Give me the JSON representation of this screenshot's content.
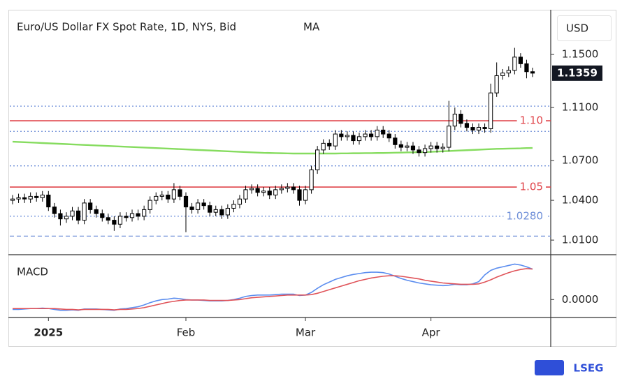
{
  "chart_data": [
    {
      "type": "candlestick",
      "title": "Euro/US Dollar FX Spot Rate, 1D, NYS, Bid",
      "currency": "USD",
      "up_color": "#ffffff",
      "down_color": "#000000",
      "outline_color": "#000000",
      "categories": [
        null,
        null,
        null,
        null,
        null,
        null,
        "2025",
        null,
        null,
        null,
        null,
        null,
        null,
        null,
        null,
        null,
        null,
        null,
        null,
        null,
        null,
        null,
        null,
        null,
        null,
        null,
        null,
        null,
        null,
        "Feb",
        null,
        null,
        null,
        null,
        null,
        null,
        null,
        null,
        null,
        null,
        null,
        null,
        null,
        null,
        null,
        null,
        null,
        null,
        null,
        "Mar",
        null,
        null,
        null,
        null,
        null,
        null,
        null,
        null,
        null,
        null,
        null,
        null,
        null,
        null,
        null,
        null,
        null,
        null,
        null,
        null,
        "Apr",
        null,
        null,
        null,
        null,
        null,
        null,
        null,
        null,
        null,
        null,
        null,
        null,
        null,
        null,
        null,
        null,
        null
      ],
      "open": [
        1.04,
        1.041,
        1.042,
        1.041,
        1.043,
        1.042,
        1.044,
        1.035,
        1.03,
        1.026,
        1.028,
        1.032,
        1.025,
        1.038,
        1.033,
        1.03,
        1.027,
        1.025,
        1.022,
        1.028,
        1.027,
        1.03,
        1.028,
        1.033,
        1.04,
        1.043,
        1.044,
        1.041,
        1.048,
        1.043,
        1.035,
        1.033,
        1.038,
        1.036,
        1.031,
        1.033,
        1.029,
        1.034,
        1.037,
        1.041,
        1.048,
        1.049,
        1.046,
        1.047,
        1.044,
        1.048,
        1.049,
        1.05,
        1.048,
        1.04,
        1.048,
        1.063,
        1.078,
        1.083,
        1.081,
        1.09,
        1.088,
        1.089,
        1.085,
        1.088,
        1.09,
        1.088,
        1.093,
        1.09,
        1.087,
        1.082,
        1.08,
        1.081,
        1.078,
        1.076,
        1.079,
        1.081,
        1.079,
        1.08,
        1.096,
        1.105,
        1.098,
        1.095,
        1.093,
        1.095,
        1.094,
        1.121,
        1.134,
        1.136,
        1.138,
        1.148,
        1.143,
        1.137
      ],
      "high": [
        1.044,
        1.045,
        1.045,
        1.046,
        1.046,
        1.047,
        1.047,
        1.038,
        1.033,
        1.031,
        1.035,
        1.035,
        1.041,
        1.041,
        1.036,
        1.033,
        1.03,
        1.028,
        1.031,
        1.031,
        1.033,
        1.033,
        1.036,
        1.043,
        1.046,
        1.047,
        1.047,
        1.053,
        1.051,
        1.046,
        1.038,
        1.041,
        1.041,
        1.039,
        1.036,
        1.036,
        1.037,
        1.04,
        1.044,
        1.051,
        1.052,
        1.052,
        1.05,
        1.05,
        1.051,
        1.052,
        1.053,
        1.053,
        1.051,
        1.051,
        1.066,
        1.081,
        1.086,
        1.086,
        1.093,
        1.093,
        1.092,
        1.092,
        1.091,
        1.093,
        1.093,
        1.096,
        1.096,
        1.093,
        1.09,
        1.085,
        1.084,
        1.084,
        1.081,
        1.082,
        1.084,
        1.084,
        1.083,
        1.115,
        1.11,
        1.108,
        1.101,
        1.098,
        1.098,
        1.098,
        1.128,
        1.144,
        1.139,
        1.141,
        1.155,
        1.151,
        1.146,
        1.14
      ],
      "low": [
        1.037,
        1.038,
        1.038,
        1.038,
        1.039,
        1.039,
        1.032,
        1.027,
        1.021,
        1.023,
        1.025,
        1.022,
        1.022,
        1.03,
        1.027,
        1.024,
        1.022,
        1.017,
        1.019,
        1.024,
        1.024,
        1.025,
        1.025,
        1.03,
        1.037,
        1.04,
        1.038,
        1.038,
        1.04,
        1.016,
        1.03,
        1.03,
        1.033,
        1.028,
        1.028,
        1.026,
        1.026,
        1.031,
        1.034,
        1.038,
        1.045,
        1.043,
        1.043,
        1.041,
        1.041,
        1.045,
        1.046,
        1.045,
        1.036,
        1.037,
        1.045,
        1.06,
        1.075,
        1.078,
        1.078,
        1.085,
        1.085,
        1.082,
        1.082,
        1.085,
        1.085,
        1.085,
        1.087,
        1.084,
        1.079,
        1.077,
        1.077,
        1.075,
        1.073,
        1.073,
        1.076,
        1.076,
        1.076,
        1.077,
        1.093,
        1.095,
        1.092,
        1.09,
        1.09,
        1.091,
        1.091,
        1.118,
        1.131,
        1.133,
        1.135,
        1.14,
        1.132,
        1.133
      ],
      "close": [
        1.041,
        1.042,
        1.041,
        1.043,
        1.042,
        1.044,
        1.035,
        1.03,
        1.026,
        1.028,
        1.032,
        1.025,
        1.038,
        1.033,
        1.03,
        1.027,
        1.025,
        1.022,
        1.028,
        1.027,
        1.03,
        1.028,
        1.033,
        1.04,
        1.043,
        1.044,
        1.041,
        1.048,
        1.043,
        1.035,
        1.033,
        1.038,
        1.036,
        1.031,
        1.033,
        1.029,
        1.034,
        1.037,
        1.041,
        1.048,
        1.049,
        1.046,
        1.047,
        1.044,
        1.048,
        1.049,
        1.05,
        1.048,
        1.04,
        1.048,
        1.063,
        1.078,
        1.083,
        1.081,
        1.09,
        1.088,
        1.089,
        1.085,
        1.088,
        1.09,
        1.088,
        1.093,
        1.09,
        1.087,
        1.082,
        1.08,
        1.081,
        1.078,
        1.076,
        1.079,
        1.081,
        1.079,
        1.08,
        1.096,
        1.105,
        1.098,
        1.095,
        1.093,
        1.095,
        1.094,
        1.121,
        1.134,
        1.136,
        1.138,
        1.148,
        1.143,
        1.137,
        1.1359
      ],
      "series": [
        {
          "name": "MA",
          "color": "#86dc5f",
          "values": [
            1.0842,
            1.084,
            1.0838,
            1.0836,
            1.0834,
            1.0832,
            1.083,
            1.0828,
            1.0826,
            1.0824,
            1.0822,
            1.082,
            1.0818,
            1.0816,
            1.0814,
            1.0812,
            1.081,
            1.0808,
            1.0806,
            1.0804,
            1.0802,
            1.08,
            1.0798,
            1.0796,
            1.0794,
            1.0792,
            1.079,
            1.0788,
            1.0786,
            1.0784,
            1.0782,
            1.078,
            1.0778,
            1.0776,
            1.0774,
            1.0772,
            1.077,
            1.0768,
            1.0766,
            1.0764,
            1.0762,
            1.076,
            1.0758,
            1.0757,
            1.0756,
            1.0755,
            1.0754,
            1.0753,
            1.0753,
            1.0753,
            1.0753,
            1.0753,
            1.0753,
            1.0753,
            1.0753,
            1.0754,
            1.0754,
            1.0755,
            1.0755,
            1.0756,
            1.0756,
            1.0757,
            1.0757,
            1.0758,
            1.0759,
            1.076,
            1.0761,
            1.0762,
            1.0763,
            1.0764,
            1.0766,
            1.0768,
            1.077,
            1.0772,
            1.0774,
            1.0776,
            1.0778,
            1.078,
            1.0782,
            1.0784,
            1.0786,
            1.0788,
            1.0789,
            1.079,
            1.0791,
            1.0792,
            1.0794,
            1.0795
          ]
        }
      ],
      "levels": [
        {
          "value": 1.111,
          "color": "#6f8fd8",
          "style": "dotted"
        },
        {
          "value": 1.1,
          "label": "1.10",
          "color": "#e0444a",
          "style": "solid"
        },
        {
          "value": 1.092,
          "color": "#6f8fd8",
          "style": "dotted"
        },
        {
          "value": 1.066,
          "color": "#6f8fd8",
          "style": "dotted"
        },
        {
          "value": 1.05,
          "label": "1.05",
          "color": "#e0444a",
          "style": "solid"
        },
        {
          "value": 1.028,
          "label": "1.0280",
          "color": "#6f8fd8",
          "style": "dotted"
        },
        {
          "value": 1.013,
          "color": "#6f8fd8",
          "style": "dashed"
        }
      ],
      "ylim": [
        0.999,
        1.1837
      ],
      "yticks": [
        {
          "value": 1.15,
          "label": "1.1500"
        },
        {
          "value": 1.11,
          "label": "1.1100"
        },
        {
          "value": 1.07,
          "label": "1.0700"
        },
        {
          "value": 1.04,
          "label": "1.0400"
        },
        {
          "value": 1.01,
          "label": "1.0100"
        }
      ]
    },
    {
      "type": "line",
      "title": "MACD",
      "series": [
        {
          "color": "#5b8def",
          "values": [
            -0.0022,
            -0.0022,
            -0.0021,
            -0.002,
            -0.002,
            -0.0019,
            -0.002,
            -0.0022,
            -0.0024,
            -0.0024,
            -0.0023,
            -0.0024,
            -0.0021,
            -0.0021,
            -0.0021,
            -0.0022,
            -0.0023,
            -0.0024,
            -0.0021,
            -0.002,
            -0.0018,
            -0.0016,
            -0.0012,
            -0.0007,
            -0.0003,
            0.0,
            0.0001,
            0.0003,
            0.0002,
            0.0,
            -0.0001,
            -0.0001,
            -0.0002,
            -0.0003,
            -0.0003,
            -0.0003,
            -0.0002,
            0.0,
            0.0003,
            0.0007,
            0.0009,
            0.001,
            0.001,
            0.001,
            0.0011,
            0.0012,
            0.0012,
            0.0012,
            0.0009,
            0.001,
            0.0016,
            0.0025,
            0.0033,
            0.0039,
            0.0045,
            0.0049,
            0.0053,
            0.0056,
            0.0058,
            0.006,
            0.0061,
            0.0061,
            0.006,
            0.0057,
            0.0052,
            0.0047,
            0.0043,
            0.004,
            0.0037,
            0.0035,
            0.0033,
            0.0032,
            0.0031,
            0.0032,
            0.0034,
            0.0033,
            0.0033,
            0.0035,
            0.004,
            0.0055,
            0.0065,
            0.007,
            0.0073,
            0.0076,
            0.0079,
            0.0077,
            0.0073,
            0.0068
          ]
        },
        {
          "color": "#e0545a",
          "values": [
            -0.002,
            -0.002,
            -0.002,
            -0.002,
            -0.002,
            -0.002,
            -0.002,
            -0.002,
            -0.0021,
            -0.0022,
            -0.0022,
            -0.0023,
            -0.0022,
            -0.0022,
            -0.0022,
            -0.0022,
            -0.0022,
            -0.0023,
            -0.0022,
            -0.0022,
            -0.0021,
            -0.002,
            -0.0018,
            -0.0015,
            -0.0012,
            -0.0009,
            -0.0006,
            -0.0004,
            -0.0002,
            -0.0001,
            -0.0001,
            -0.0001,
            -0.0001,
            -0.0002,
            -0.0002,
            -0.0002,
            -0.0002,
            -0.0001,
            0.0,
            0.0002,
            0.0004,
            0.0005,
            0.0006,
            0.0007,
            0.0008,
            0.0009,
            0.001,
            0.001,
            0.001,
            0.001,
            0.0011,
            0.0014,
            0.0018,
            0.0022,
            0.0026,
            0.003,
            0.0034,
            0.0038,
            0.0042,
            0.0045,
            0.0048,
            0.005,
            0.0052,
            0.0053,
            0.0053,
            0.0052,
            0.005,
            0.0048,
            0.0046,
            0.0043,
            0.0041,
            0.0039,
            0.0037,
            0.0036,
            0.0035,
            0.0034,
            0.0034,
            0.0034,
            0.0035,
            0.0039,
            0.0044,
            0.005,
            0.0055,
            0.006,
            0.0064,
            0.0067,
            0.0069,
            0.0068
          ]
        }
      ],
      "ylim": [
        -0.004,
        0.01
      ],
      "yticks": [
        {
          "value": 0,
          "label": "0.0000"
        }
      ]
    }
  ],
  "branding": "LSEG"
}
